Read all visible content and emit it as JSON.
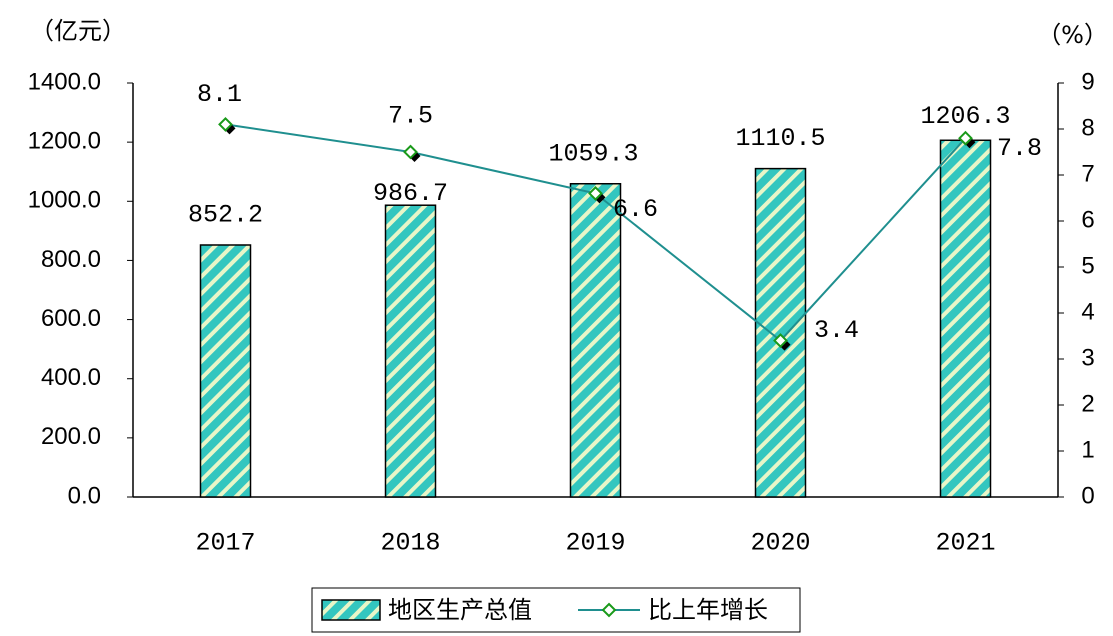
{
  "chart_data": {
    "type": "bar_line",
    "y_label": "（亿元）",
    "y2_label": "（%）",
    "categories": [
      "2017",
      "2018",
      "2019",
      "2020",
      "2021"
    ],
    "series": [
      {
        "name": "地区生产总值",
        "color": "#33c6bf",
        "type": "bar",
        "values": [
          852.2,
          986.7,
          1059.3,
          1110.5,
          1206.3
        ]
      },
      {
        "name": "比上年增长",
        "color": "#1f8f8f",
        "type": "line",
        "axis": "y2",
        "values": [
          8.1,
          7.5,
          6.6,
          3.4,
          7.8
        ]
      }
    ],
    "ylim": [
      0,
      1400
    ],
    "yticks": [
      {
        "value": 0,
        "label": "0.0"
      },
      {
        "value": 200,
        "label": "200.0"
      },
      {
        "value": 400,
        "label": "400.0"
      },
      {
        "value": 600,
        "label": "600.0"
      },
      {
        "value": 800,
        "label": "800.0"
      },
      {
        "value": 1000,
        "label": "1000.0"
      },
      {
        "value": 1200,
        "label": "1200.0"
      },
      {
        "value": 1400,
        "label": "1400.0"
      }
    ],
    "y2lim": [
      0,
      9
    ],
    "y2ticks": [
      0,
      1,
      2,
      3,
      4,
      5,
      6,
      7,
      8,
      9
    ],
    "grid": false,
    "legend": "bottom"
  }
}
